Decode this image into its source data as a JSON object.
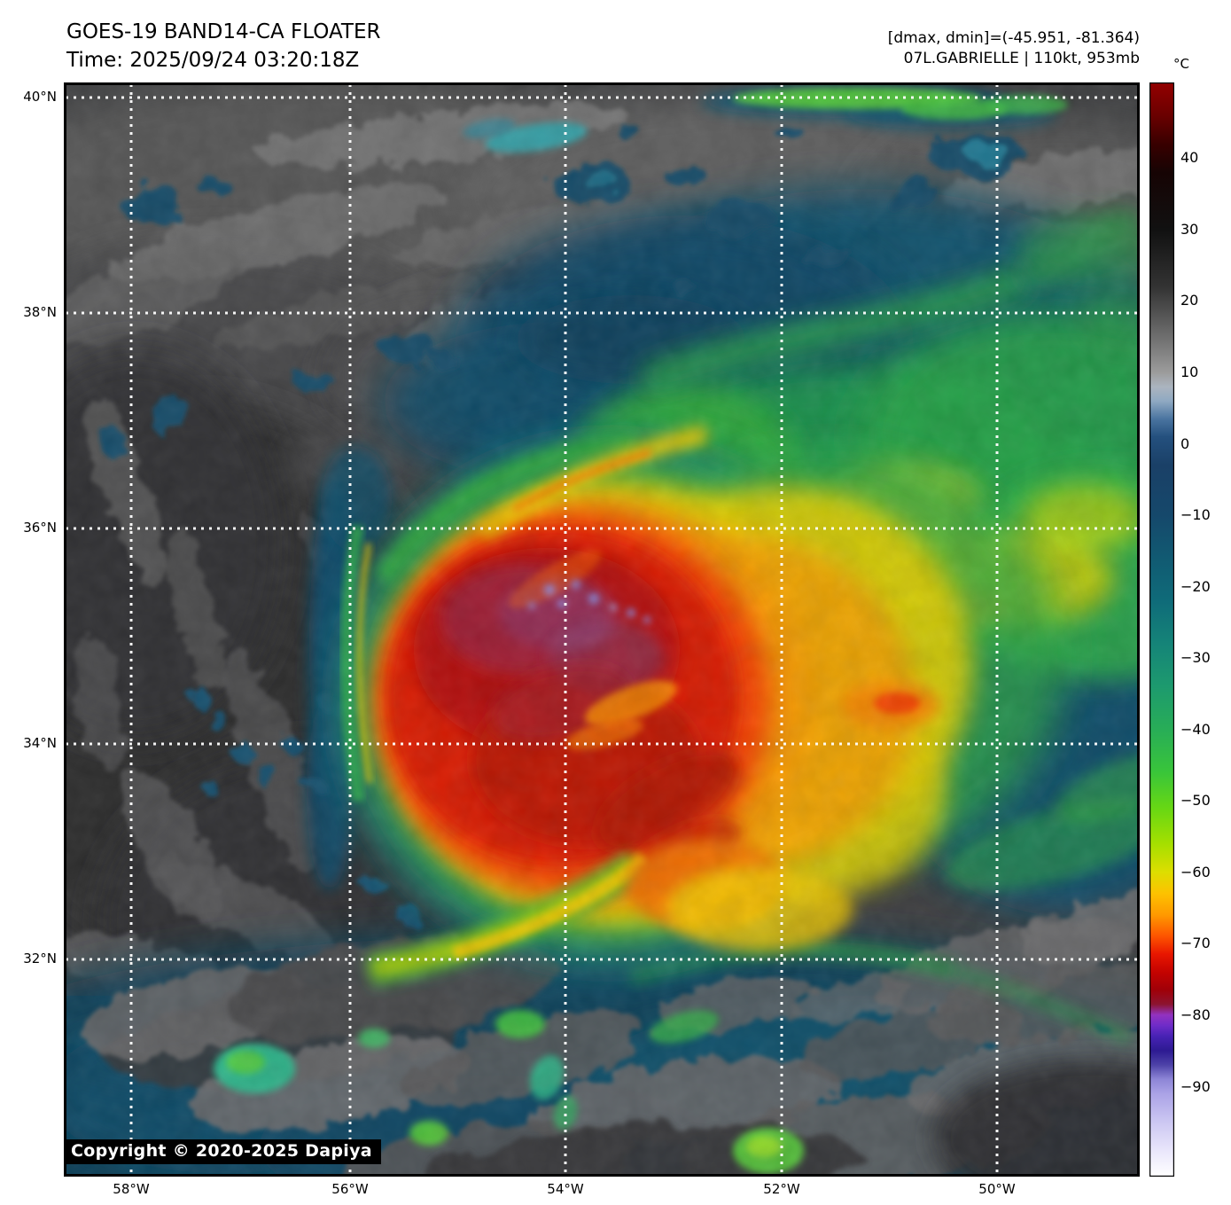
{
  "header": {
    "title": "GOES-19 BAND14-CA FLOATER",
    "time_line": "Time: 2025/09/24 03:20:18Z",
    "dmax_dmin": "[dmax, dmin]=(-45.951, -81.364)",
    "storm_info": "07L.GABRIELLE | 110kt, 953mb"
  },
  "map": {
    "copyright": "Copyright © 2020-2025 Dapiya",
    "lat_ticks": [
      "40°N",
      "38°N",
      "36°N",
      "34°N",
      "32°N"
    ],
    "lon_ticks": [
      "58°W",
      "56°W",
      "54°W",
      "52°W",
      "50°W"
    ],
    "gridline_color": "#ffffff"
  },
  "colorbar": {
    "unit": "°C",
    "value_max": 50.6,
    "value_min": -102.6,
    "ticks": [
      {
        "value": 40,
        "label": "40"
      },
      {
        "value": 30,
        "label": "30"
      },
      {
        "value": 20,
        "label": "20"
      },
      {
        "value": 10,
        "label": "10"
      },
      {
        "value": 0,
        "label": "0"
      },
      {
        "value": -10,
        "label": "−10"
      },
      {
        "value": -20,
        "label": "−20"
      },
      {
        "value": -30,
        "label": "−30"
      },
      {
        "value": -40,
        "label": "−40"
      },
      {
        "value": -50,
        "label": "−50"
      },
      {
        "value": -60,
        "label": "−60"
      },
      {
        "value": -70,
        "label": "−70"
      },
      {
        "value": -80,
        "label": "−80"
      },
      {
        "value": -90,
        "label": "−90"
      }
    ],
    "gradient_stops": [
      {
        "value": 50.6,
        "color": "#930000"
      },
      {
        "value": 46,
        "color": "#6a0000"
      },
      {
        "value": 42,
        "color": "#380000"
      },
      {
        "value": 38,
        "color": "#160404"
      },
      {
        "value": 30,
        "color": "#111111"
      },
      {
        "value": 22,
        "color": "#333333"
      },
      {
        "value": 14,
        "color": "#777777"
      },
      {
        "value": 10,
        "color": "#9c9c9c"
      },
      {
        "value": 8,
        "color": "#abb4bf"
      },
      {
        "value": 6,
        "color": "#8fa9c2"
      },
      {
        "value": 3.5,
        "color": "#4a74a0"
      },
      {
        "value": 1,
        "color": "#24507e"
      },
      {
        "value": -3,
        "color": "#1a4067"
      },
      {
        "value": -10,
        "color": "#15486b"
      },
      {
        "value": -16,
        "color": "#115a72"
      },
      {
        "value": -22,
        "color": "#0f6b79"
      },
      {
        "value": -28,
        "color": "#158478"
      },
      {
        "value": -34,
        "color": "#1d9a6e"
      },
      {
        "value": -40,
        "color": "#28ad57"
      },
      {
        "value": -46,
        "color": "#39c53a"
      },
      {
        "value": -51,
        "color": "#67d714"
      },
      {
        "value": -56,
        "color": "#a5df00"
      },
      {
        "value": -60,
        "color": "#ddde00"
      },
      {
        "value": -63,
        "color": "#fdc200"
      },
      {
        "value": -66,
        "color": "#ff9900"
      },
      {
        "value": -69,
        "color": "#fd5300"
      },
      {
        "value": -71.5,
        "color": "#e81600"
      },
      {
        "value": -74,
        "color": "#c40300"
      },
      {
        "value": -76.5,
        "color": "#a00008"
      },
      {
        "value": -78.5,
        "color": "#8c1430"
      },
      {
        "value": -80,
        "color": "#9232c0"
      },
      {
        "value": -81.5,
        "color": "#6e2cc8"
      },
      {
        "value": -83,
        "color": "#4722b4"
      },
      {
        "value": -85,
        "color": "#2d1a92"
      },
      {
        "value": -87,
        "color": "#4d42a8"
      },
      {
        "value": -89,
        "color": "#8d85d6"
      },
      {
        "value": -91,
        "color": "#aaa2e6"
      },
      {
        "value": -95,
        "color": "#ccc7f2"
      },
      {
        "value": -99,
        "color": "#e9e6fb"
      },
      {
        "value": -102.6,
        "color": "#ffffff"
      }
    ]
  }
}
